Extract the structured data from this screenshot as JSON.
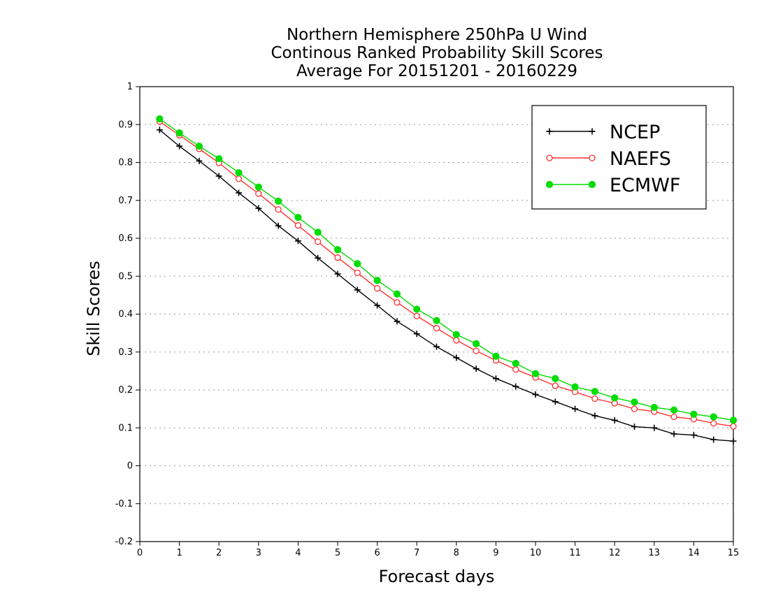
{
  "chart_data": {
    "type": "line",
    "title": [
      "Northern Hemisphere 250hPa U Wind",
      "Continous Ranked Probability Skill Scores",
      "Average For 20151201 - 20160229"
    ],
    "xlabel": "Forecast days",
    "ylabel": "Skill Scores",
    "xlim": [
      0,
      15
    ],
    "ylim": [
      -0.2,
      1
    ],
    "xticks": [
      "0",
      "1",
      "2",
      "3",
      "4",
      "5",
      "6",
      "7",
      "8",
      "9",
      "10",
      "11",
      "12",
      "13",
      "14",
      "15"
    ],
    "yticks": [
      "-0.2",
      "-0.1",
      "0",
      "0.1",
      "0.2",
      "0.3",
      "0.4",
      "0.5",
      "0.6",
      "0.7",
      "0.8",
      "0.9",
      "1"
    ],
    "grid": "horizontal-dotted",
    "legend_position": "top-right",
    "x": [
      0.5,
      1,
      1.5,
      2,
      2.5,
      3,
      3.5,
      4,
      4.5,
      5,
      5.5,
      6,
      6.5,
      7,
      7.5,
      8,
      8.5,
      9,
      9.5,
      10,
      10.5,
      11,
      11.5,
      12,
      12.5,
      13,
      13.5,
      14,
      14.5,
      15
    ],
    "series": [
      {
        "name": "NCEP",
        "color": "#000000",
        "marker": "plus",
        "values": [
          0.886,
          0.843,
          0.804,
          0.764,
          0.72,
          0.679,
          0.633,
          0.593,
          0.548,
          0.506,
          0.464,
          0.423,
          0.381,
          0.348,
          0.314,
          0.285,
          0.256,
          0.23,
          0.209,
          0.188,
          0.169,
          0.15,
          0.132,
          0.12,
          0.103,
          0.1,
          0.084,
          0.081,
          0.069,
          0.065
        ]
      },
      {
        "name": "NAEFS",
        "color": "#ff3030",
        "marker": "open-circle",
        "values": [
          0.908,
          0.872,
          0.836,
          0.799,
          0.757,
          0.718,
          0.676,
          0.634,
          0.591,
          0.549,
          0.509,
          0.468,
          0.431,
          0.395,
          0.363,
          0.331,
          0.303,
          0.278,
          0.254,
          0.233,
          0.211,
          0.195,
          0.177,
          0.165,
          0.15,
          0.143,
          0.129,
          0.123,
          0.112,
          0.104
        ]
      },
      {
        "name": "ECMWF",
        "color": "#00dd00",
        "marker": "filled-circle",
        "values": [
          0.915,
          0.878,
          0.843,
          0.81,
          0.773,
          0.735,
          0.698,
          0.655,
          0.616,
          0.57,
          0.533,
          0.489,
          0.453,
          0.413,
          0.383,
          0.346,
          0.322,
          0.289,
          0.27,
          0.243,
          0.23,
          0.208,
          0.196,
          0.179,
          0.168,
          0.154,
          0.147,
          0.136,
          0.129,
          0.12
        ]
      }
    ]
  }
}
